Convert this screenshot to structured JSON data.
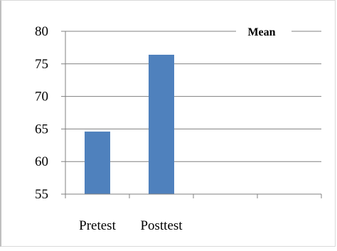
{
  "chart_data": {
    "type": "bar",
    "categories": [
      "Pretest",
      "Posttest",
      "",
      ""
    ],
    "series": [
      {
        "name": "Mean",
        "values": [
          64.6,
          76.4,
          null,
          null
        ],
        "color": "#4F81BD"
      }
    ],
    "ylim": [
      55,
      80
    ],
    "yticks": [
      55,
      60,
      65,
      70,
      75,
      80
    ],
    "ytick_labels": [
      "55",
      "60",
      "65",
      "70",
      "75",
      "80"
    ],
    "title": "",
    "xlabel": "",
    "ylabel": "",
    "grid": true,
    "legend": {
      "position": "top-right",
      "label": "Mean"
    }
  }
}
